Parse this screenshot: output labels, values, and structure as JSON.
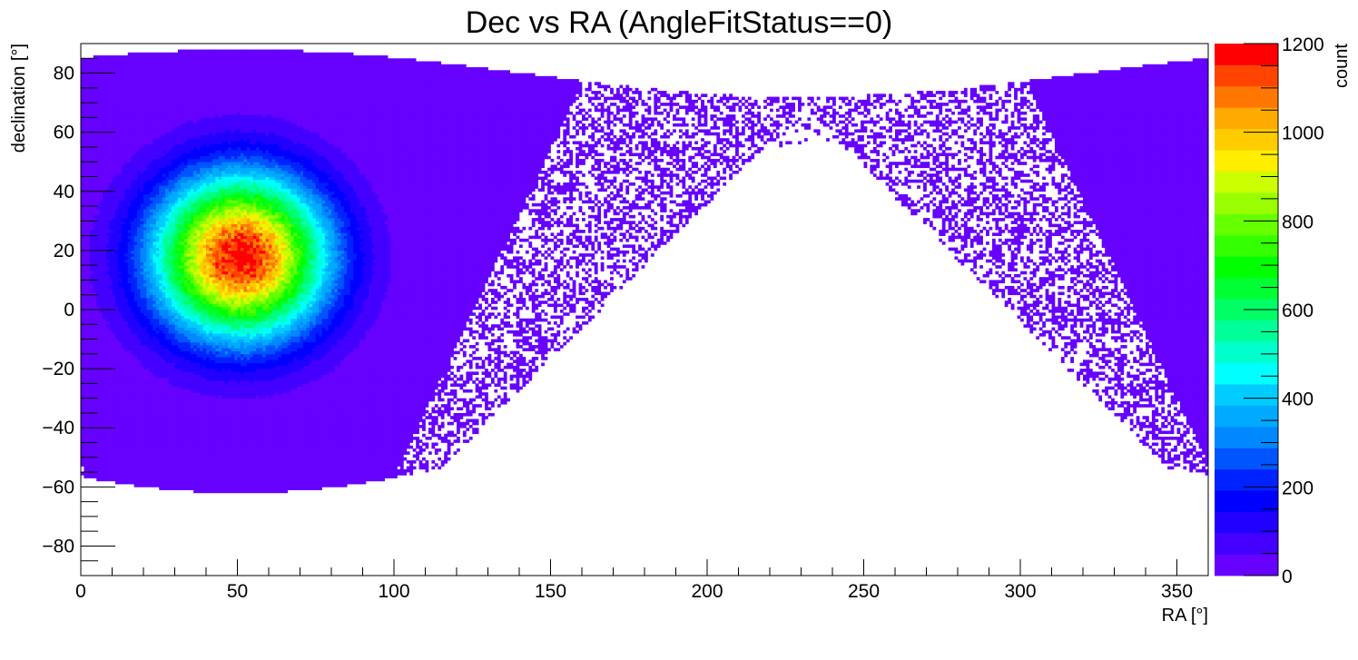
{
  "chart_data": {
    "type": "heatmap",
    "title": "Dec vs RA (AngleFitStatus==0)",
    "xlabel": "RA [°]",
    "ylabel": "declination [°]",
    "zlabel": "count",
    "xlim": [
      0,
      360
    ],
    "ylim": [
      -90,
      90
    ],
    "zlim": [
      0,
      1200
    ],
    "x_ticks": [
      0,
      50,
      100,
      150,
      200,
      250,
      300,
      350
    ],
    "y_ticks": [
      -80,
      -60,
      -40,
      -20,
      0,
      20,
      40,
      60,
      80
    ],
    "z_ticks": [
      0,
      200,
      400,
      600,
      800,
      1000,
      1200
    ],
    "x_tick_labels": [
      "0",
      "50",
      "100",
      "150",
      "200",
      "250",
      "300",
      "350"
    ],
    "y_tick_labels": [
      "−80",
      "−60",
      "−40",
      "−20",
      "0",
      "20",
      "40",
      "60",
      "80"
    ],
    "z_tick_labels": [
      "0",
      "200",
      "400",
      "600",
      "800",
      "1000",
      "1200"
    ],
    "bins": {
      "nx": 360,
      "ny": 180
    },
    "peak": {
      "ra": 51,
      "dec": 18,
      "count": 1200
    },
    "grid": false,
    "legend": "right",
    "palette": [
      "#6600ff",
      "#4400ff",
      "#2200ff",
      "#0000ff",
      "#0022ff",
      "#0055ff",
      "#0088ff",
      "#00aaff",
      "#00ccff",
      "#00ffff",
      "#00ffcc",
      "#00ff99",
      "#00ff66",
      "#00ff33",
      "#00ff00",
      "#33ff00",
      "#66ff00",
      "#99ff00",
      "#ccff00",
      "#ffee00",
      "#ffcc00",
      "#ffaa00",
      "#ff7700",
      "#ff4400",
      "#ff0000"
    ]
  }
}
